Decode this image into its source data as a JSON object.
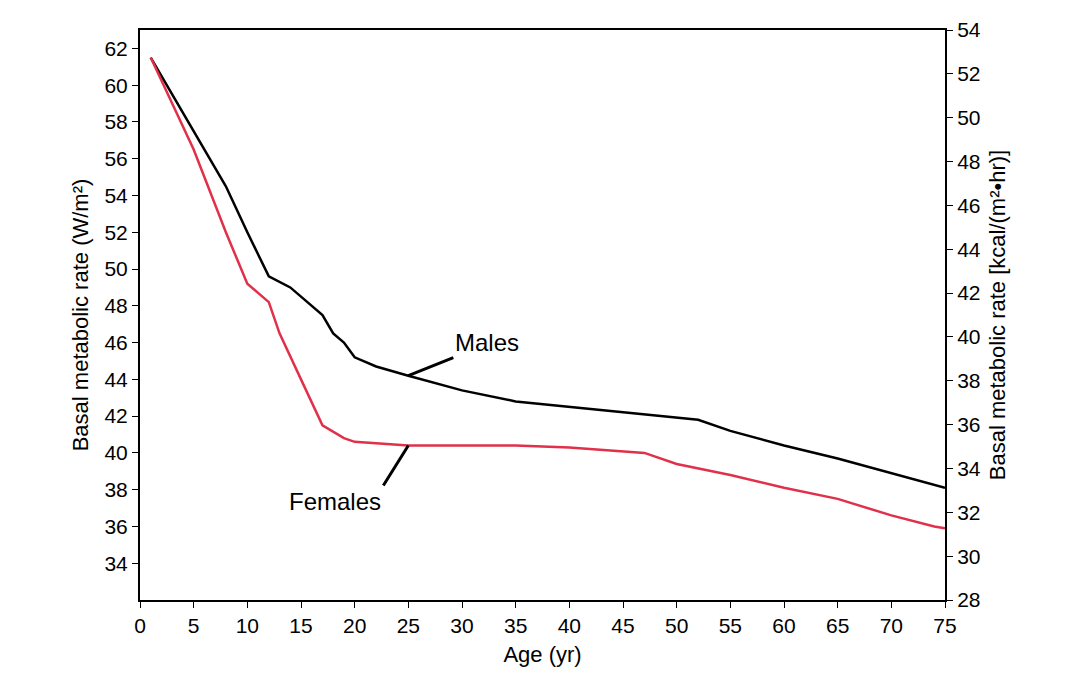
{
  "chart_data": {
    "type": "line",
    "x_label": "Age (yr)",
    "y_label": "Basal metabolic rate (W/m²)",
    "y2_label": "Basal metabolic rate [kcal/(m²•hr)]",
    "xlim": [
      0,
      75
    ],
    "xticks": [
      0,
      5,
      10,
      15,
      20,
      25,
      30,
      35,
      40,
      45,
      50,
      55,
      60,
      65,
      70,
      75
    ],
    "ylim": [
      32,
      63
    ],
    "yticks": [
      34,
      36,
      38,
      40,
      42,
      44,
      46,
      48,
      50,
      52,
      54,
      56,
      58,
      60,
      62
    ],
    "y2lim": [
      28,
      54
    ],
    "y2ticks": [
      28,
      30,
      32,
      34,
      36,
      38,
      40,
      42,
      44,
      46,
      48,
      50,
      52,
      54
    ],
    "grid": false,
    "series": [
      {
        "name": "Males",
        "color": "#000000",
        "x": [
          1,
          3,
          5,
          8,
          10,
          12,
          14,
          16,
          17,
          18,
          19,
          20,
          22,
          25,
          30,
          35,
          40,
          45,
          50,
          52,
          55,
          60,
          65,
          70,
          75
        ],
        "values": [
          61.5,
          59.5,
          57.5,
          54.5,
          52,
          49.6,
          49,
          48,
          47.5,
          46.5,
          46,
          45.2,
          44.7,
          44.2,
          43.4,
          42.8,
          42.5,
          42.2,
          41.9,
          41.8,
          41.2,
          40.4,
          39.7,
          38.9,
          38.1
        ]
      },
      {
        "name": "Females",
        "color": "#e0304a",
        "x": [
          1,
          3,
          5,
          8,
          10,
          12,
          13,
          15,
          17,
          19,
          20,
          25,
          30,
          35,
          40,
          45,
          47,
          50,
          55,
          60,
          65,
          70,
          74,
          75
        ],
        "values": [
          61.5,
          59,
          56.5,
          52,
          49.2,
          48.2,
          46.5,
          44,
          41.5,
          40.8,
          40.6,
          40.4,
          40.4,
          40.4,
          40.3,
          40.1,
          40,
          39.4,
          38.8,
          38.1,
          37.5,
          36.6,
          36,
          35.9
        ]
      }
    ]
  }
}
